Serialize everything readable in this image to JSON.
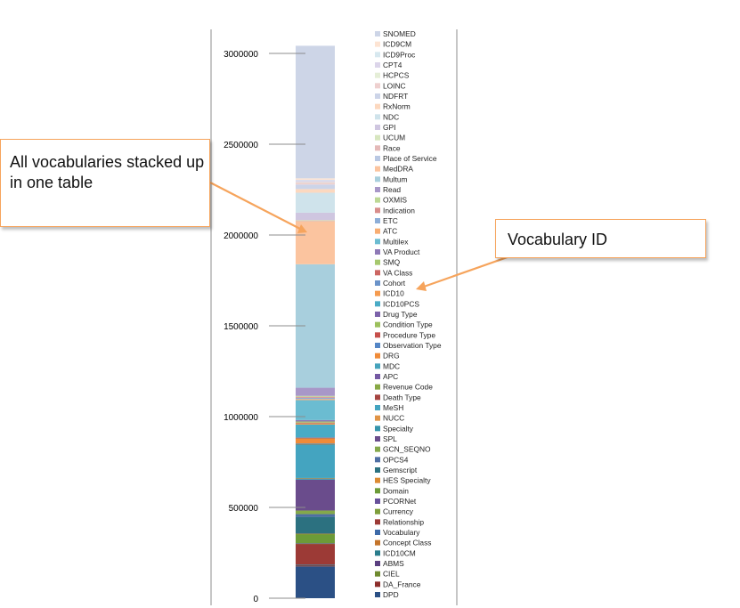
{
  "chart_data": {
    "type": "bar",
    "stacked": true,
    "categories": [
      ""
    ],
    "ylim": [
      0,
      3200000
    ],
    "yticks": [
      0,
      500000,
      1000000,
      1500000,
      2000000,
      2500000,
      3000000
    ],
    "ytick_labels": [
      "0",
      "500000",
      "1000000",
      "1500000",
      "2000000",
      "2500000",
      "3000000"
    ],
    "grid": false,
    "legend_position": "right",
    "series": [
      {
        "name": "DPD",
        "value": 175000,
        "color": "#2b5085"
      },
      {
        "name": "DA_France",
        "value": 5000,
        "color": "#8c2e2b"
      },
      {
        "name": "CIEL",
        "value": 2000,
        "color": "#6f8a2f"
      },
      {
        "name": "ABMS",
        "value": 1000,
        "color": "#5a3f80"
      },
      {
        "name": "ICD10CM",
        "value": 1000,
        "color": "#2a7d8c"
      },
      {
        "name": "Concept Class",
        "value": 1000,
        "color": "#c4742a"
      },
      {
        "name": "Vocabulary",
        "value": 1000,
        "color": "#3d6aa8"
      },
      {
        "name": "Relationship",
        "value": 114000,
        "color": "#9c3a36"
      },
      {
        "name": "Currency",
        "value": 1000,
        "color": "#7e9e3b"
      },
      {
        "name": "PCORNet",
        "value": 1000,
        "color": "#67509a"
      },
      {
        "name": "Domain",
        "value": 52000,
        "color": "#6c9b38"
      },
      {
        "name": "HES Specialty",
        "value": 1000,
        "color": "#dc8a32"
      },
      {
        "name": "Gemscript",
        "value": 93000,
        "color": "#2c7180"
      },
      {
        "name": "OPCS4",
        "value": 15000,
        "color": "#4f6ea3"
      },
      {
        "name": "GCN_SEQNO",
        "value": 20000,
        "color": "#84a84a"
      },
      {
        "name": "SPL",
        "value": 170000,
        "color": "#6a4c8c"
      },
      {
        "name": "Specialty",
        "value": 8000,
        "color": "#3494ab"
      },
      {
        "name": "NUCC",
        "value": 1000,
        "color": "#e09446"
      },
      {
        "name": "MeSH",
        "value": 185000,
        "color": "#44a4c0"
      },
      {
        "name": "Death Type",
        "value": 2000,
        "color": "#a54440"
      },
      {
        "name": "Revenue Code",
        "value": 1000,
        "color": "#88a845"
      },
      {
        "name": "APC",
        "value": 1000,
        "color": "#7459a3"
      },
      {
        "name": "MDC",
        "value": 1000,
        "color": "#45a3bc"
      },
      {
        "name": "DRG",
        "value": 30000,
        "color": "#f08b38"
      },
      {
        "name": "Observation Type",
        "value": 1000,
        "color": "#5486c6"
      },
      {
        "name": "Procedure Type",
        "value": 1000,
        "color": "#c64f4b"
      },
      {
        "name": "Condition Type",
        "value": 1000,
        "color": "#9cc05c"
      },
      {
        "name": "Drug Type",
        "value": 1000,
        "color": "#7c62aa"
      },
      {
        "name": "ICD10PCS",
        "value": 70000,
        "color": "#49abc6"
      },
      {
        "name": "ICD10",
        "value": 9000,
        "color": "#f59b4f"
      },
      {
        "name": "Cohort",
        "value": 1000,
        "color": "#6b93c9"
      },
      {
        "name": "VA Class",
        "value": 1000,
        "color": "#cc6662"
      },
      {
        "name": "SMQ",
        "value": 6000,
        "color": "#a6c86e"
      },
      {
        "name": "VA Product",
        "value": 8000,
        "color": "#8e79b6"
      },
      {
        "name": "Multilex",
        "value": 110000,
        "color": "#6bbcd1"
      },
      {
        "name": "ATC",
        "value": 6000,
        "color": "#f8ad72"
      },
      {
        "name": "ETC",
        "value": 7000,
        "color": "#8daed8"
      },
      {
        "name": "Indication",
        "value": 5000,
        "color": "#d88d8b"
      },
      {
        "name": "OXMIS",
        "value": 5000,
        "color": "#bdd895"
      },
      {
        "name": "Read",
        "value": 45000,
        "color": "#a897c8"
      },
      {
        "name": "Multum",
        "value": 680000,
        "color": "#a8cfdd"
      },
      {
        "name": "MedDRA",
        "value": 240000,
        "color": "#fbc49f"
      },
      {
        "name": "Place of Service",
        "value": 1000,
        "color": "#b9c8e3"
      },
      {
        "name": "Race",
        "value": 2000,
        "color": "#e4b9b8"
      },
      {
        "name": "UCUM",
        "value": 1000,
        "color": "#d7e6bf"
      },
      {
        "name": "GPI",
        "value": 40000,
        "color": "#cfc6e0"
      },
      {
        "name": "NDC",
        "value": 110000,
        "color": "#cfe3eb"
      },
      {
        "name": "RxNorm",
        "value": 20000,
        "color": "#fcd8bf"
      },
      {
        "name": "NDFRT",
        "value": 25000,
        "color": "#ccd4e8"
      },
      {
        "name": "LOINC",
        "value": 12000,
        "color": "#eed0cf"
      },
      {
        "name": "HCPCS",
        "value": 1000,
        "color": "#e5eed7"
      },
      {
        "name": "CPT4",
        "value": 12000,
        "color": "#dcd5ea"
      },
      {
        "name": "ICD9Proc",
        "value": 1000,
        "color": "#d7e8ef"
      },
      {
        "name": "ICD9CM",
        "value": 8000,
        "color": "#fde4d3"
      },
      {
        "name": "SNOMED",
        "value": 730000,
        "color": "#cdd5e7"
      }
    ]
  },
  "annotations": {
    "left_callout": "All vocabularies stacked up in one table",
    "right_callout": "Vocabulary ID"
  },
  "colors": {
    "callout_border": "#f6a45c",
    "arrow": "#f6a45c",
    "axis": "#8c8c8c"
  }
}
